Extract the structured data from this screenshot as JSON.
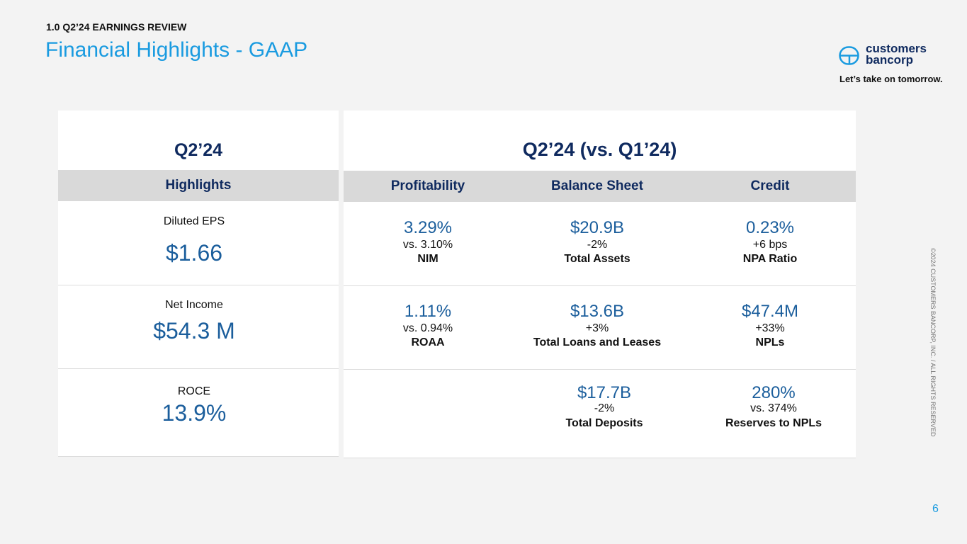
{
  "header": {
    "section": "1.0 Q2’24 EARNINGS REVIEW",
    "title": "Financial Highlights - GAAP"
  },
  "logo": {
    "name_line1": "customers",
    "name_line2": "bancorp",
    "tagline": "Let’s take on tomorrow."
  },
  "left_panel": {
    "title": "Q2’24",
    "header": "Highlights",
    "items": [
      {
        "label": "Diluted EPS",
        "value": "$1.66"
      },
      {
        "label": "Net Income",
        "value": "$54.3 M"
      },
      {
        "label": "ROCE",
        "value": "13.9%"
      }
    ]
  },
  "right_panel": {
    "title": "Q2’24 (vs. Q1’24)",
    "columns": [
      "Profitability",
      "Balance Sheet",
      "Credit"
    ],
    "rows": [
      [
        {
          "value": "3.29%",
          "change": "vs. 3.10%",
          "label": "NIM"
        },
        {
          "value": "$20.9B",
          "change": "-2%",
          "label": "Total Assets"
        },
        {
          "value": "0.23%",
          "change": "+6 bps",
          "label": "NPA Ratio"
        }
      ],
      [
        {
          "value": "1.11%",
          "change": "vs. 0.94%",
          "label": "ROAA"
        },
        {
          "value": "$13.6B",
          "change": "+3%",
          "label": "Total Loans and Leases"
        },
        {
          "value": "$47.4M",
          "change": "+33%",
          "label": "NPLs"
        }
      ],
      [
        null,
        {
          "value": "$17.7B",
          "change": "-2%",
          "label": "Total Deposits"
        },
        {
          "value": "280%",
          "change": "vs. 374%",
          "label": "Reserves to NPLs"
        }
      ]
    ]
  },
  "copyright": "©2024 CUSTOMERS BANCORP, INC. / ALL RIGHTS RESERVED",
  "page_number": "6"
}
